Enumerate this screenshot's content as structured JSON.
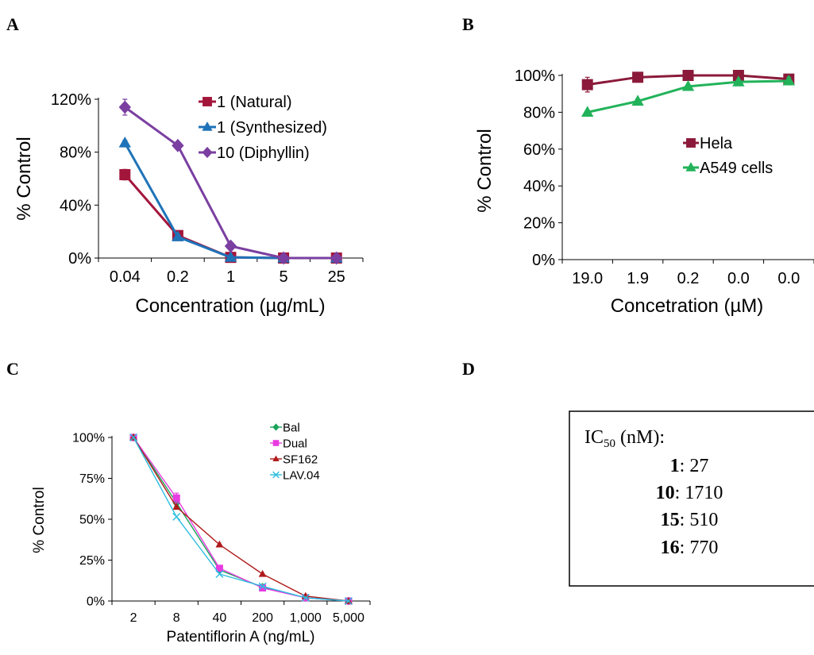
{
  "panel_labels": [
    "A",
    "B",
    "C",
    "D"
  ],
  "chart_data": [
    {
      "id": "A",
      "type": "line",
      "categories": [
        "0.04",
        "0.2",
        "1",
        "5",
        "25"
      ],
      "ylabel": "% Control",
      "xlabel": "Concentration (µg/mL)",
      "yticks": [
        "0%",
        "40%",
        "80%",
        "120%"
      ],
      "ylim": [
        0,
        1.2
      ],
      "error_bars": true,
      "series": [
        {
          "name": "1 (Natural)",
          "color": "#A3163B",
          "marker": "square",
          "values": [
            0.63,
            0.17,
            0.005,
            0.0,
            0.0
          ],
          "err": [
            0.04,
            0.01,
            0.005,
            0,
            0
          ]
        },
        {
          "name": "1 (Synthesized)",
          "color": "#1F73B8",
          "marker": "triangle",
          "values": [
            0.87,
            0.16,
            0.005,
            0.0,
            0.0
          ],
          "err": [
            0.02,
            0.01,
            0.005,
            0,
            0
          ]
        },
        {
          "name": "10 (Diphyllin)",
          "color": "#7A3FA1",
          "marker": "diamond",
          "values": [
            1.14,
            0.85,
            0.09,
            0.0,
            0.0
          ],
          "err": [
            0.06,
            0.02,
            0.005,
            0,
            0
          ]
        }
      ],
      "legend": "top-right"
    },
    {
      "id": "B",
      "type": "line",
      "categories": [
        "19.0",
        "1.9",
        "0.2",
        "0.0",
        "0.0"
      ],
      "ylabel": "% Control",
      "xlabel": "Concetration (µM)",
      "yticks": [
        "0%",
        "20%",
        "40%",
        "60%",
        "80%",
        "100%"
      ],
      "ylim": [
        0,
        1.0
      ],
      "error_bars": true,
      "series": [
        {
          "name": "Hela",
          "color": "#8B1A3A",
          "marker": "square",
          "values": [
            0.95,
            0.99,
            1.0,
            1.0,
            0.98
          ],
          "err": [
            0.04,
            0.01,
            0.01,
            0.01,
            0.02
          ]
        },
        {
          "name": "A549 cells",
          "color": "#22B35A",
          "marker": "triangle",
          "values": [
            0.8,
            0.86,
            0.94,
            0.965,
            0.97
          ],
          "err": [
            0.01,
            0.01,
            0.01,
            0.01,
            0.02
          ]
        }
      ],
      "legend": "center-right"
    },
    {
      "id": "C",
      "type": "line",
      "categories": [
        "2",
        "8",
        "40",
        "200",
        "1,000",
        "5,000"
      ],
      "ylabel": "% Control",
      "xlabel": "Patentiflorin A (ng/mL)",
      "yticks": [
        "0%",
        "25%",
        "50%",
        "75%",
        "100%"
      ],
      "ylim": [
        0,
        1.0
      ],
      "error_bars": true,
      "series": [
        {
          "name": "Bal",
          "color": "#1AA35A",
          "marker": "diamond",
          "values": [
            1.0,
            0.6,
            0.19,
            0.085,
            0.02,
            0.0
          ],
          "err": [
            0,
            0.02,
            0,
            0,
            0,
            0
          ]
        },
        {
          "name": "Dual",
          "color": "#E83BE0",
          "marker": "square",
          "values": [
            1.0,
            0.63,
            0.2,
            0.08,
            0.02,
            0.0
          ],
          "err": [
            0,
            0.03,
            0,
            0,
            0,
            0
          ]
        },
        {
          "name": "SF162",
          "color": "#B01B1B",
          "marker": "triangle",
          "values": [
            1.0,
            0.575,
            0.345,
            0.165,
            0.03,
            0.0
          ],
          "err": [
            0,
            0,
            0,
            0,
            0,
            0
          ]
        },
        {
          "name": "LAV.04",
          "color": "#2DBDE0",
          "marker": "x",
          "values": [
            1.0,
            0.515,
            0.165,
            0.09,
            0.02,
            0.0
          ],
          "err": [
            0,
            0,
            0,
            0,
            0,
            0
          ]
        }
      ],
      "legend": "top-right"
    }
  ],
  "ic50_box": {
    "title_prefix": "IC",
    "title_sub": "50",
    "title_suffix": " (nM):",
    "rows": [
      {
        "compound": "1",
        "value": ": 27"
      },
      {
        "compound": "10",
        "value": ": 1710"
      },
      {
        "compound": "15",
        "value": ": 510"
      },
      {
        "compound": "16",
        "value": ": 770"
      }
    ]
  }
}
